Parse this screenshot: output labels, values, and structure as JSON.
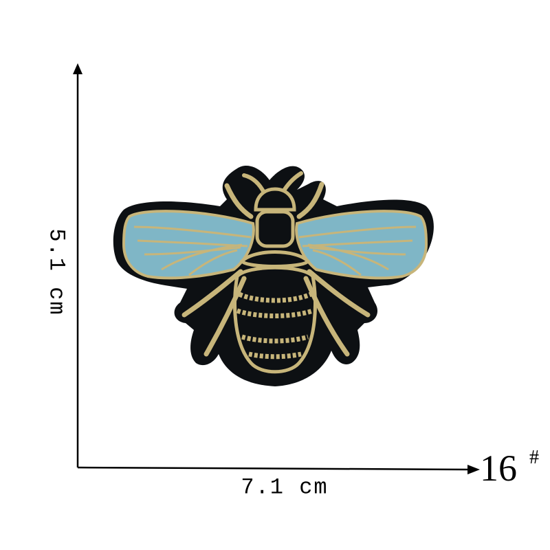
{
  "dimensions": {
    "height": "5.1 cm",
    "width": "7.1 cm"
  },
  "model": {
    "number": "16",
    "suffix": "#"
  },
  "colors": {
    "patch_base": "#0d1013",
    "thread_gold": "#c7b57a",
    "wing_blue": "#7fb6c6",
    "axis": "#000000"
  }
}
